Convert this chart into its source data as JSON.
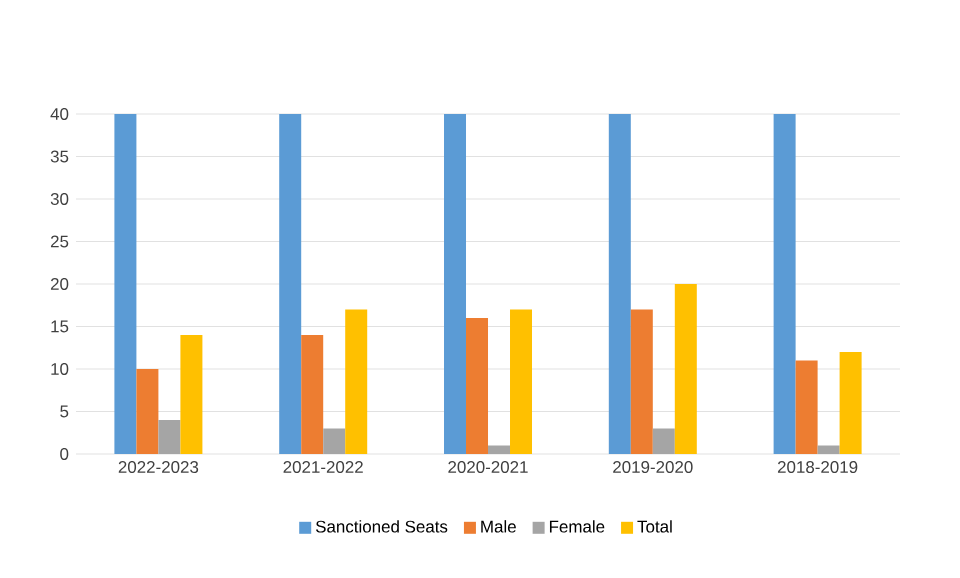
{
  "chart_data": {
    "type": "bar",
    "categories": [
      "2022-2023",
      "2021-2022",
      "2020-2021",
      "2019-2020",
      "2018-2019"
    ],
    "series": [
      {
        "name": "Sanctioned Seats",
        "color": "#5b9bd5",
        "values": [
          40,
          40,
          40,
          40,
          40
        ]
      },
      {
        "name": "Male",
        "color": "#ed7d31",
        "values": [
          10,
          14,
          16,
          17,
          11
        ]
      },
      {
        "name": "Female",
        "color": "#a5a5a5",
        "values": [
          4,
          3,
          1,
          3,
          1
        ]
      },
      {
        "name": "Total",
        "color": "#ffc000",
        "values": [
          14,
          17,
          17,
          20,
          12
        ]
      }
    ],
    "ylim": [
      0,
      40
    ],
    "yticks": [
      0,
      5,
      10,
      15,
      20,
      25,
      30,
      35,
      40
    ],
    "grid": "y",
    "legend": "bottom"
  }
}
